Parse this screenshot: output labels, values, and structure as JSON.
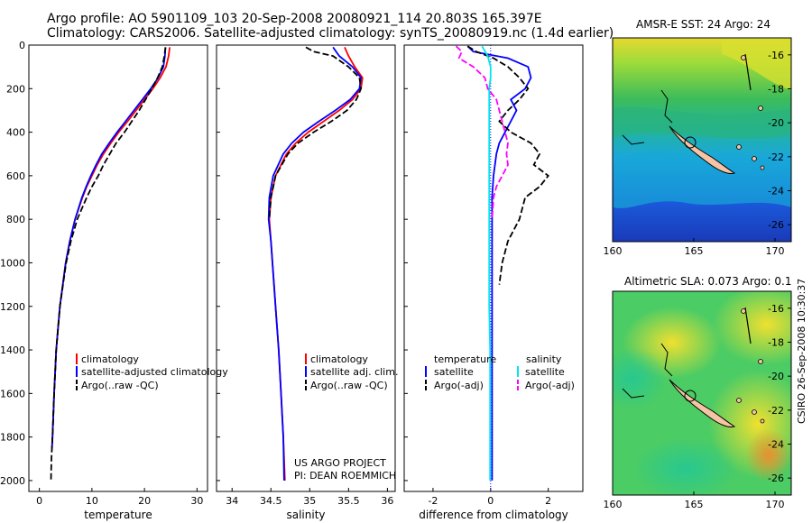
{
  "header": {
    "line1": "Argo profile: AO 5901109_103 20-Sep-2008 20080921_114 20.803S 165.397E",
    "line2": "Climatology: CARS2006. Satellite-adjusted climatology: synTS_20080919.nc (1.4d earlier)"
  },
  "timestamp": "CSIRO 26-Sep-2008 10:30:37",
  "credit": {
    "line1": "US ARGO PROJECT",
    "line2": "PI: DEAN ROEMMICH"
  },
  "colors": {
    "climatology": "#ff0000",
    "satellite": "#0000ff",
    "argo": "#000000",
    "salinity_satellite": "#00e5ee",
    "salinity_argo": "#ff00ff",
    "diff_zero": "#0000ff"
  },
  "chart_data": [
    {
      "type": "line",
      "xlabel": "temperature",
      "ylabel": "",
      "xlim": [
        -2,
        32
      ],
      "ylim": [
        2050,
        0
      ],
      "x_ticks": [
        0,
        10,
        20,
        30
      ],
      "y_ticks": [
        0,
        200,
        400,
        600,
        800,
        1000,
        1200,
        1400,
        1600,
        1800,
        2000
      ],
      "y_reversed": true,
      "depth": [
        10,
        50,
        100,
        150,
        200,
        250,
        300,
        350,
        400,
        450,
        500,
        550,
        600,
        650,
        700,
        800,
        900,
        1000,
        1200,
        1400,
        1600,
        1800,
        1850
      ],
      "series": [
        {
          "name": "climatology",
          "color": "#ff0000",
          "values": [
            24.8,
            24.6,
            24.1,
            23.0,
            21.6,
            20.0,
            18.4,
            16.8,
            15.1,
            13.6,
            12.2,
            11.0,
            10.0,
            9.0,
            8.2,
            6.8,
            5.8,
            5.0,
            3.9,
            3.2,
            2.8,
            2.5,
            2.4
          ]
        },
        {
          "name": "satellite-adjusted climatology",
          "color": "#0000ff",
          "values": [
            24.0,
            23.9,
            23.6,
            22.6,
            21.2,
            19.6,
            18.0,
            16.4,
            14.8,
            13.3,
            11.9,
            10.8,
            9.8,
            8.9,
            8.1,
            6.8,
            5.8,
            5.0,
            3.9,
            3.2,
            2.8,
            2.5,
            2.4
          ]
        },
        {
          "name": "Argo(..raw -QC)",
          "color": "#000000",
          "dash": true,
          "depth": [
            10,
            50,
            100,
            150,
            200,
            250,
            300,
            350,
            400,
            450,
            500,
            550,
            600,
            650,
            700,
            800,
            900,
            1000,
            1200,
            1400,
            1600,
            1800,
            1850,
            1900,
            2000
          ],
          "values": [
            24.0,
            23.8,
            23.4,
            22.5,
            21.4,
            20.2,
            19.0,
            17.6,
            16.2,
            14.6,
            13.4,
            12.2,
            11.2,
            10.0,
            9.0,
            7.2,
            6.0,
            5.1,
            3.9,
            3.2,
            2.8,
            2.5,
            2.4,
            2.3,
            2.2
          ]
        }
      ],
      "legend": [
        {
          "label": "climatology",
          "color": "#ff0000"
        },
        {
          "label": "satellite-adjusted climatology",
          "color": "#0000ff"
        },
        {
          "label": "Argo(..raw -QC)",
          "color": "#000000"
        }
      ]
    },
    {
      "type": "line",
      "xlabel": "salinity",
      "xlim": [
        33.8,
        36.1
      ],
      "ylim": [
        2050,
        0
      ],
      "x_ticks": [
        34,
        34.5,
        35,
        35.5,
        36
      ],
      "y_reversed": true,
      "depth": [
        10,
        50,
        100,
        150,
        200,
        250,
        300,
        350,
        400,
        450,
        500,
        600,
        700,
        800,
        900,
        1000,
        1200,
        1400,
        1600,
        1800,
        2000
      ],
      "series": [
        {
          "name": "climatology",
          "color": "#ff0000",
          "values": [
            35.45,
            35.5,
            35.58,
            35.68,
            35.66,
            35.55,
            35.38,
            35.18,
            34.98,
            34.82,
            34.7,
            34.56,
            34.5,
            34.48,
            34.5,
            34.52,
            34.56,
            34.6,
            34.63,
            34.66,
            34.68
          ]
        },
        {
          "name": "satellite adj. clim.",
          "color": "#0000ff",
          "values": [
            35.3,
            35.38,
            35.55,
            35.66,
            35.64,
            35.52,
            35.33,
            35.12,
            34.92,
            34.77,
            34.66,
            34.53,
            34.48,
            34.47,
            34.5,
            34.52,
            34.56,
            34.6,
            34.63,
            34.66,
            34.67
          ]
        },
        {
          "name": "Argo(..raw -QC)",
          "color": "#000000",
          "dash": true,
          "depth": [
            10,
            30,
            50,
            100,
            150,
            200,
            250,
            300,
            350,
            400,
            450,
            500,
            600,
            700,
            800
          ],
          "values": [
            34.95,
            35.05,
            35.3,
            35.5,
            35.64,
            35.66,
            35.6,
            35.48,
            35.28,
            35.05,
            34.85,
            34.72,
            34.56,
            34.5,
            34.48
          ]
        }
      ],
      "legend": [
        {
          "label": "climatology",
          "color": "#ff0000"
        },
        {
          "label": "satellite adj. clim.",
          "color": "#0000ff"
        },
        {
          "label": "Argo(..raw -QC)",
          "color": "#000000"
        }
      ]
    },
    {
      "type": "line",
      "xlabel": "difference from climatology",
      "xlim": [
        -3,
        3.2
      ],
      "ylim": [
        2050,
        0
      ],
      "x_ticks": [
        -2,
        0,
        2
      ],
      "y_reversed": true,
      "zero_line": 0,
      "series": [
        {
          "name": "temperature satellite",
          "color": "#0000ff",
          "depth": [
            5,
            30,
            60,
            100,
            150,
            200,
            250,
            300,
            350,
            400,
            450,
            500,
            550,
            600,
            700,
            800,
            900,
            1000,
            1200,
            1400,
            1600,
            1800,
            2000
          ],
          "values": [
            -0.8,
            -0.6,
            0.6,
            1.3,
            1.4,
            1.2,
            0.7,
            0.9,
            0.7,
            0.5,
            0.3,
            0.2,
            0.15,
            0.1,
            0.05,
            0.05,
            0.05,
            0.05,
            0.05,
            0.05,
            0.05,
            0.05,
            0.05
          ]
        },
        {
          "name": "temperature Argo(-adj)",
          "color": "#000000",
          "dash": true,
          "depth": [
            5,
            30,
            60,
            100,
            150,
            200,
            250,
            300,
            350,
            400,
            450,
            500,
            550,
            600,
            650,
            700,
            800,
            900,
            1000,
            1100
          ],
          "values": [
            -0.8,
            -0.5,
            0.1,
            0.6,
            1.0,
            1.3,
            1.0,
            0.6,
            0.3,
            0.7,
            1.4,
            1.7,
            1.5,
            2.0,
            1.7,
            1.2,
            1.0,
            0.6,
            0.4,
            0.3
          ]
        },
        {
          "name": "salinity satellite",
          "color": "#00e5ee",
          "depth": [
            5,
            50,
            100,
            150,
            200,
            300,
            400,
            500,
            600,
            800,
            1000,
            1200,
            1400,
            1600,
            1800,
            2000
          ],
          "values": [
            -0.3,
            -0.1,
            0.0,
            0.0,
            -0.05,
            -0.05,
            -0.05,
            -0.05,
            -0.05,
            -0.05,
            -0.05,
            -0.05,
            -0.02,
            -0.02,
            -0.02,
            -0.02
          ]
        },
        {
          "name": "salinity Argo(-adj)",
          "color": "#ff00ff",
          "dash": true,
          "depth": [
            5,
            30,
            60,
            100,
            150,
            200,
            250,
            300,
            350,
            400,
            450,
            500,
            550,
            600,
            650,
            700,
            800
          ],
          "values": [
            -1.2,
            -1.0,
            -1.1,
            -0.6,
            -0.2,
            -0.1,
            0.2,
            0.3,
            0.4,
            0.5,
            0.6,
            0.55,
            0.6,
            0.4,
            0.2,
            0.1,
            0.05
          ]
        }
      ],
      "legend": [
        {
          "group": "temperature",
          "label": "satellite",
          "color": "#0000ff"
        },
        {
          "group": "temperature",
          "label": "Argo(-adj)",
          "color": "#000000"
        },
        {
          "group": "salinity",
          "label": "satellite",
          "color": "#00e5ee"
        },
        {
          "group": "salinity",
          "label": "Argo(-adj)",
          "color": "#ff00ff"
        }
      ]
    },
    {
      "type": "heatmap",
      "title": "AMSR-E SST: 24 Argo: 24",
      "xlim": [
        160,
        171
      ],
      "ylim": [
        -27,
        -15
      ],
      "x_ticks": [
        160,
        165,
        170
      ],
      "y_ticks": [
        -16,
        -18,
        -20,
        -22,
        -24,
        -26
      ]
    },
    {
      "type": "heatmap",
      "title": "Altimetric SLA: 0.073 Argo: 0.1",
      "xlim": [
        160,
        171
      ],
      "ylim": [
        -27,
        -15
      ],
      "x_ticks": [
        160,
        165,
        170
      ],
      "y_ticks": [
        -16,
        -18,
        -20,
        -22,
        -24,
        -26
      ]
    }
  ],
  "argo_position": {
    "lon": 165.397,
    "lat": -20.803
  },
  "legend_headers": {
    "temperature": "temperature",
    "salinity": "salinity"
  }
}
